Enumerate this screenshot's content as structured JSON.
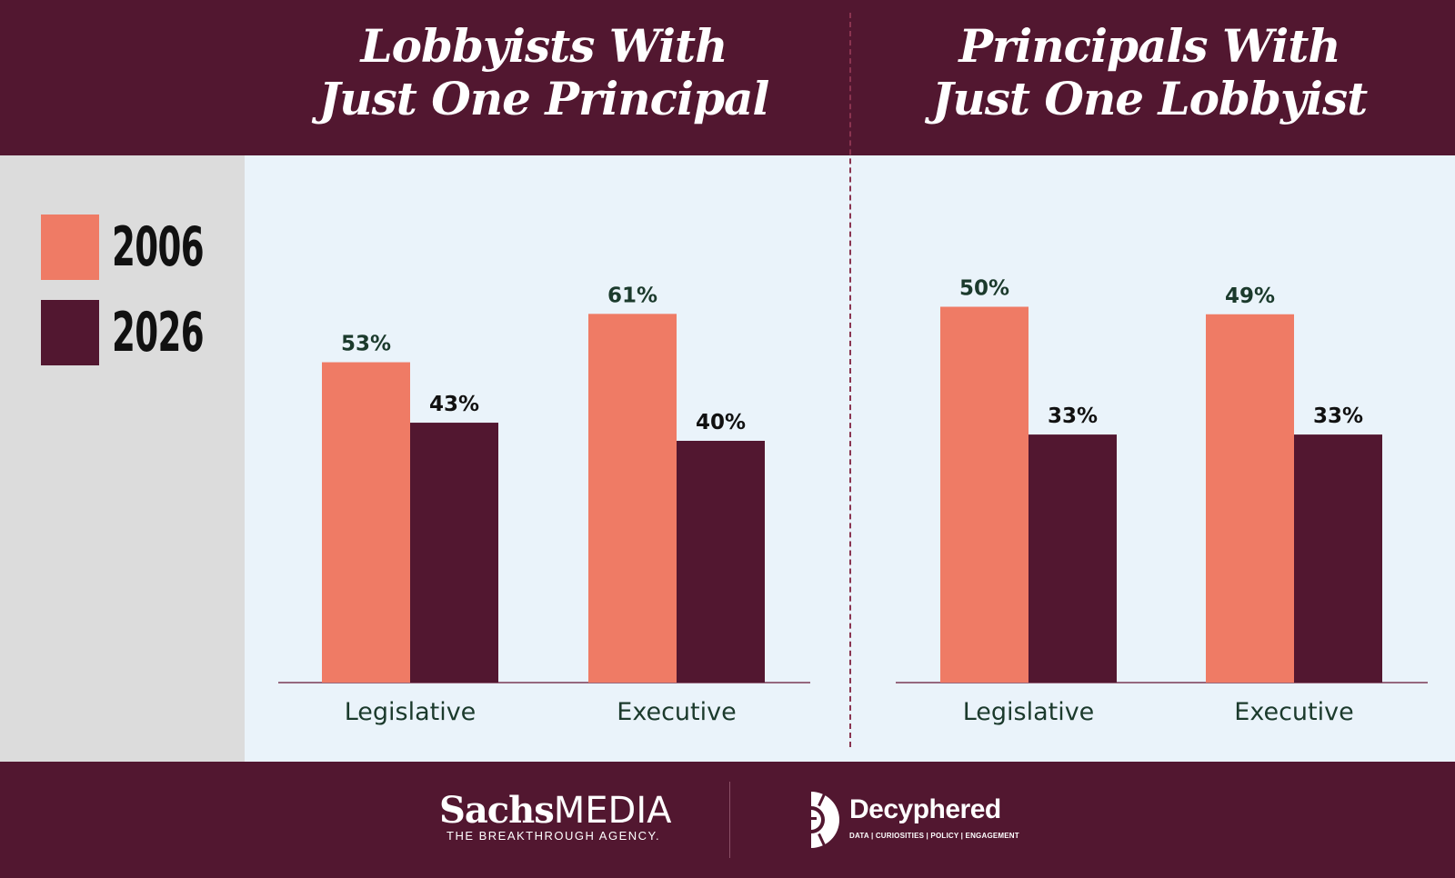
{
  "colors": {
    "header_bg": "#521730",
    "panel_bg": "#eaf3fa",
    "legend_bg": "#dcdcdc",
    "series_2006": "#ef7b65",
    "series_2026": "#521730",
    "label_text": "#1b3a2c"
  },
  "legend": {
    "items": [
      {
        "label": "2006",
        "color": "#ef7b65"
      },
      {
        "label": "2026",
        "color": "#521730"
      }
    ]
  },
  "chart_data": [
    {
      "type": "bar",
      "title": "Lobbyists With Just One Principal",
      "title_lines": [
        "Lobbyists With",
        "Just One Principal"
      ],
      "categories": [
        "Legislative",
        "Executive"
      ],
      "series": [
        {
          "name": "2006",
          "values": [
            53,
            61
          ],
          "labels": [
            "53%",
            "61%"
          ]
        },
        {
          "name": "2026",
          "values": [
            43,
            40
          ],
          "labels": [
            "43%",
            "40%"
          ]
        }
      ],
      "ylim": [
        0,
        100
      ],
      "xlabel": "",
      "ylabel": "",
      "grid": false
    },
    {
      "type": "bar",
      "title": "Principals With Just One Lobbyist",
      "title_lines": [
        "Principals With",
        "Just One Lobbyist"
      ],
      "categories": [
        "Legislative",
        "Executive"
      ],
      "series": [
        {
          "name": "2006",
          "values": [
            50,
            49
          ],
          "labels": [
            "50%",
            "49%"
          ]
        },
        {
          "name": "2026",
          "values": [
            33,
            33
          ],
          "labels": [
            "33%",
            "33%"
          ]
        }
      ],
      "ylim": [
        0,
        100
      ],
      "xlabel": "",
      "ylabel": "",
      "grid": false
    }
  ],
  "footer": {
    "sachs": {
      "name_bold": "Sachs",
      "name_light": "MEDIA",
      "tagline": "THE BREAKTHROUGH AGENCY."
    },
    "decyphered": {
      "name": "Decyphered",
      "tagline": "DATA | CURIOSITIES | POLICY | ENGAGEMENT"
    }
  }
}
